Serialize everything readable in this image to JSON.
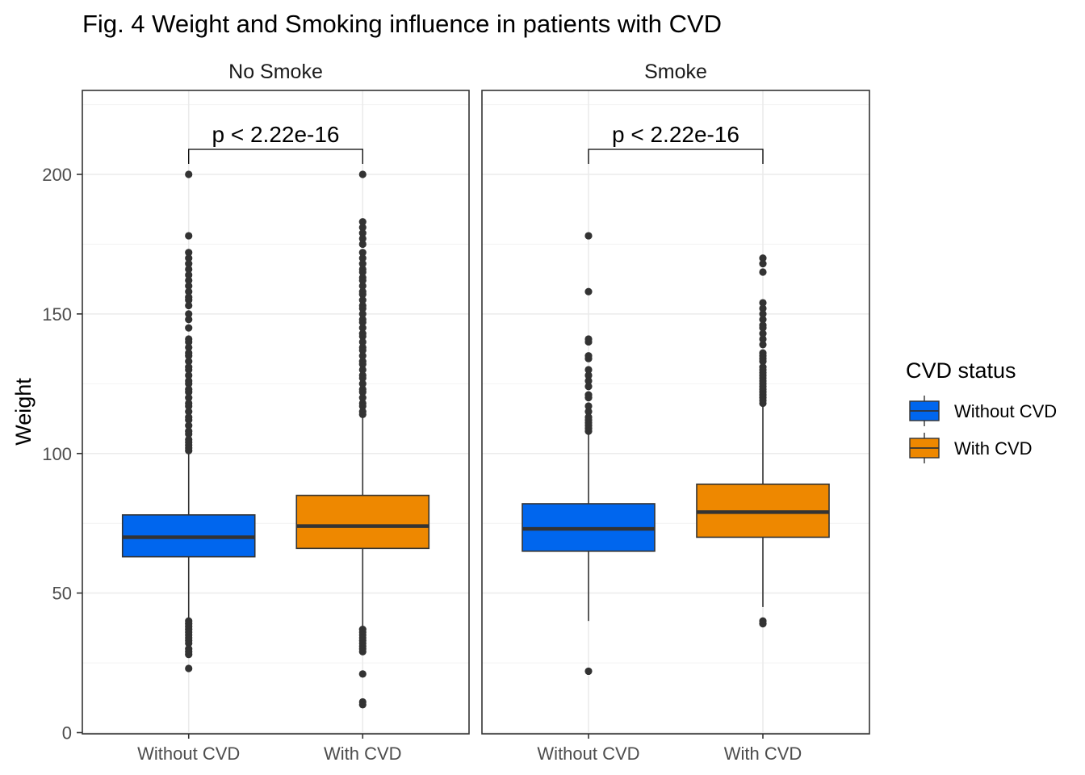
{
  "chart_data": {
    "type": "box",
    "title": "Fig. 4 Weight and Smoking influence in patients with CVD",
    "ylabel": "Weight",
    "xlabel": "",
    "ylim": [
      0,
      230
    ],
    "yticks": [
      0,
      50,
      100,
      150,
      200
    ],
    "grid": true,
    "legend": {
      "title": "CVD status",
      "position": "right",
      "items": [
        {
          "label": "Without CVD",
          "color": "#0066EE"
        },
        {
          "label": "With CVD",
          "color": "#EE8800"
        }
      ]
    },
    "categories": [
      "Without CVD",
      "With CVD"
    ],
    "panels": [
      {
        "name": "No Smoke",
        "p_label": "p < 2.22e-16",
        "boxes": [
          {
            "category": "Without CVD",
            "min": 40.5,
            "q1": 63,
            "median": 70,
            "q3": 78,
            "max": 100.5,
            "outliers": [
              200,
              178,
              172,
              170,
              168,
              166,
              164,
              162,
              160,
              158,
              156,
              155,
              153,
              150,
              148,
              145,
              141,
              140,
              138,
              136,
              135,
              133,
              131,
              130,
              128,
              126,
              125,
              123,
              122,
              120,
              118,
              117,
              115,
              113,
              112,
              110,
              108,
              107,
              105,
              104,
              103,
              102,
              101,
              40,
              39,
              38,
              37,
              36,
              35,
              34,
              33,
              32,
              30,
              29,
              28,
              23
            ]
          },
          {
            "category": "With CVD",
            "min": 37.5,
            "q1": 66,
            "median": 74,
            "q3": 85,
            "max": 113.5,
            "outliers": [
              200,
              183,
              181,
              179,
              177,
              175,
              172,
              170,
              168,
              166,
              165,
              163,
              162,
              160,
              158,
              157,
              155,
              153,
              152,
              150,
              148,
              147,
              145,
              143,
              142,
              140,
              138,
              137,
              135,
              133,
              132,
              130,
              128,
              127,
              125,
              123,
              122,
              120,
              118,
              117,
              115,
              114,
              37,
              36,
              35,
              34,
              33,
              32,
              31,
              30,
              29,
              21,
              11,
              10
            ]
          }
        ]
      },
      {
        "name": "Smoke",
        "p_label": "p < 2.22e-16",
        "boxes": [
          {
            "category": "Without CVD",
            "min": 40,
            "q1": 65,
            "median": 73,
            "q3": 82,
            "max": 107.5,
            "outliers": [
              178,
              158,
              141,
              140,
              135,
              134,
              130,
              128,
              126,
              124,
              121,
              120,
              117,
              115,
              113,
              112,
              111,
              110,
              109,
              108,
              22
            ]
          },
          {
            "category": "With CVD",
            "min": 45,
            "q1": 70,
            "median": 79,
            "q3": 89,
            "max": 117.5,
            "outliers": [
              170,
              168,
              165,
              154,
              152,
              150,
              148,
              146,
              145,
              143,
              141,
              139,
              136,
              135,
              134,
              133,
              131,
              130,
              129,
              128,
              127,
              126,
              125,
              124,
              123,
              122,
              121,
              120,
              119,
              118,
              40,
              39
            ]
          }
        ]
      }
    ]
  }
}
